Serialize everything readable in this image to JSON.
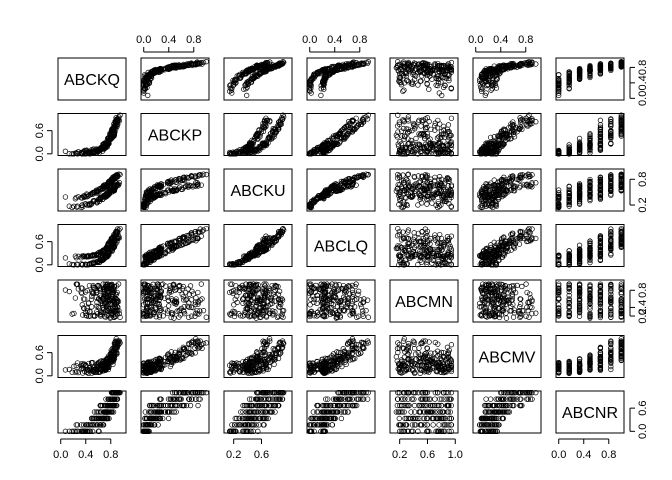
{
  "chart_data": {
    "type": "scatter",
    "variables": [
      "ABCKQ",
      "ABCKP",
      "ABCKU",
      "ABCLQ",
      "ABCMN",
      "ABCMV",
      "ABCNR"
    ],
    "ranges": [
      [
        0,
        1
      ],
      [
        0,
        1
      ],
      [
        0.1,
        1
      ],
      [
        0,
        1
      ],
      [
        0.1,
        1
      ],
      [
        0,
        1
      ],
      [
        0,
        1
      ]
    ],
    "ticks": {
      "bottom": [
        {
          "panel": 0,
          "labels": [
            "0.0",
            "0.4",
            "0.8"
          ]
        },
        {
          "panel": 2,
          "labels": [
            "0.2",
            "0.6"
          ]
        },
        {
          "panel": 4,
          "labels": [
            "0.2",
            "0.6",
            "1.0"
          ]
        },
        {
          "panel": 6,
          "labels": [
            "0.0",
            "0.4",
            "0.8"
          ]
        }
      ],
      "top": [
        {
          "panel": 1,
          "labels": [
            "0.0",
            "0.4",
            "0.8"
          ]
        },
        {
          "panel": 3,
          "labels": [
            "0.0",
            "0.4",
            "0.8"
          ]
        },
        {
          "panel": 5,
          "labels": [
            "0.0",
            "0.4",
            "0.8"
          ]
        }
      ],
      "left": [
        {
          "panel": 1,
          "labels": [
            "0.0",
            "0.6"
          ]
        },
        {
          "panel": 3,
          "labels": [
            "0.0",
            "0.6"
          ]
        },
        {
          "panel": 5,
          "labels": [
            "0.0",
            "0.6"
          ]
        }
      ],
      "right": [
        {
          "panel": 0,
          "labels": [
            "0.0",
            "0.4",
            "0.8"
          ]
        },
        {
          "panel": 2,
          "labels": [
            "0.2",
            "0.8"
          ]
        },
        {
          "panel": 4,
          "labels": [
            "0.2",
            "0.4",
            "0.8"
          ]
        },
        {
          "panel": 6,
          "labels": [
            "0.0",
            "0.6"
          ]
        }
      ]
    },
    "grid": false,
    "marker": "open-circle"
  }
}
